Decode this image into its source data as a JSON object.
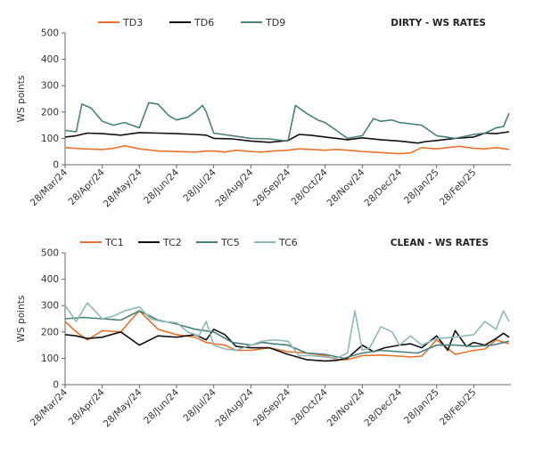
{
  "chart_data": [
    {
      "type": "line",
      "title": "DIRTY - WS RATES",
      "ylabel": "WS points",
      "ylim": [
        0,
        500
      ],
      "yticks": [
        0,
        100,
        200,
        300,
        400,
        500
      ],
      "x_tick_labels": [
        "28/Mar/24",
        "28/Apr/24",
        "28/May/24",
        "28/Jun/24",
        "28/Jul/24",
        "28/Aug/24",
        "28/Sep/24",
        "28/Oct/24",
        "28/Nov/24",
        "28/Dec/24",
        "28/Jan/25",
        "28/Feb/25"
      ],
      "xlim": [
        0,
        12
      ],
      "legend_position": "top",
      "series": [
        {
          "name": "TD3",
          "color": "#e8732c",
          "x": [
            0,
            0.5,
            1,
            1.3,
            1.6,
            2,
            2.5,
            3,
            3.5,
            3.8,
            4,
            4.3,
            4.6,
            5,
            5.3,
            5.6,
            6,
            6.3,
            6.6,
            7,
            7.3,
            7.6,
            8,
            8.3,
            8.6,
            9,
            9.3,
            9.6,
            10,
            10.3,
            10.6,
            11,
            11.3,
            11.6,
            11.95
          ],
          "y": [
            65,
            60,
            58,
            62,
            72,
            60,
            52,
            50,
            48,
            52,
            52,
            48,
            55,
            50,
            48,
            52,
            55,
            60,
            58,
            55,
            58,
            55,
            50,
            48,
            45,
            42,
            45,
            65,
            60,
            65,
            70,
            62,
            60,
            65,
            58
          ]
        },
        {
          "name": "TD6",
          "color": "#111111",
          "x": [
            0,
            0.3,
            0.6,
            1,
            1.5,
            2,
            2.5,
            3,
            3.5,
            3.8,
            4,
            4.5,
            5,
            5.5,
            6,
            6.3,
            6.6,
            7,
            7.3,
            7.6,
            8,
            8.5,
            9,
            9.5,
            9.7,
            10,
            10.5,
            11,
            11.3,
            11.6,
            11.95
          ],
          "y": [
            105,
            110,
            120,
            118,
            112,
            122,
            120,
            118,
            115,
            112,
            100,
            98,
            90,
            85,
            92,
            115,
            112,
            105,
            100,
            95,
            102,
            95,
            90,
            82,
            88,
            92,
            100,
            105,
            120,
            118,
            125
          ]
        },
        {
          "name": "TD9",
          "color": "#4a7f7f",
          "x": [
            0,
            0.3,
            0.45,
            0.7,
            1,
            1.3,
            1.6,
            2,
            2.25,
            2.5,
            2.8,
            3,
            3.3,
            3.5,
            3.7,
            3.8,
            4,
            4.5,
            5,
            5.5,
            6,
            6.2,
            6.5,
            6.8,
            7,
            7.3,
            7.6,
            8,
            8.3,
            8.5,
            8.8,
            9,
            9.3,
            9.6,
            10,
            10.5,
            11,
            11.3,
            11.6,
            11.8,
            11.95
          ],
          "y": [
            130,
            125,
            230,
            215,
            165,
            150,
            160,
            140,
            235,
            230,
            185,
            170,
            180,
            200,
            225,
            200,
            120,
            110,
            100,
            98,
            90,
            225,
            195,
            170,
            160,
            130,
            100,
            110,
            175,
            165,
            170,
            160,
            155,
            150,
            110,
            100,
            115,
            120,
            140,
            145,
            195
          ]
        }
      ]
    },
    {
      "type": "line",
      "title": "CLEAN - WS RATES",
      "ylabel": "WS points",
      "ylim": [
        0,
        500
      ],
      "yticks": [
        0,
        100,
        200,
        300,
        400,
        500
      ],
      "x_tick_labels": [
        "28/Mar/24",
        "28/Apr/24",
        "28/May/24",
        "28/Jun/24",
        "28/Jul/24",
        "28/Aug/24",
        "28/Sep/24",
        "28/Oct/24",
        "28/Nov/24",
        "28/Dec/24",
        "28/Jan/25",
        "28/Feb/25"
      ],
      "xlim": [
        0,
        12
      ],
      "legend_position": "top",
      "series": [
        {
          "name": "TC1",
          "color": "#e8732c",
          "x": [
            0,
            0.3,
            0.6,
            1,
            1.5,
            1.8,
            2,
            2.5,
            3,
            3.5,
            3.8,
            4,
            4.3,
            4.6,
            5,
            5.5,
            6,
            6.5,
            7,
            7.3,
            7.6,
            8,
            8.5,
            9,
            9.3,
            9.6,
            10,
            10.5,
            11,
            11.3,
            11.6,
            11.95
          ],
          "y": [
            240,
            200,
            170,
            205,
            200,
            250,
            280,
            210,
            190,
            180,
            160,
            155,
            150,
            130,
            130,
            140,
            125,
            120,
            110,
            95,
            95,
            110,
            112,
            108,
            105,
            108,
            170,
            115,
            130,
            135,
            170,
            155
          ]
        },
        {
          "name": "TC2",
          "color": "#111111",
          "x": [
            0,
            0.3,
            0.6,
            1,
            1.5,
            2,
            2.5,
            3,
            3.5,
            3.8,
            4,
            4.3,
            4.6,
            5,
            5.5,
            6,
            6.5,
            7,
            7.3,
            7.6,
            8,
            8.3,
            8.6,
            9,
            9.3,
            9.6,
            10,
            10.3,
            10.5,
            10.8,
            11,
            11.3,
            11.6,
            11.8,
            11.95
          ],
          "y": [
            190,
            185,
            175,
            180,
            200,
            150,
            185,
            180,
            190,
            170,
            210,
            190,
            145,
            140,
            140,
            115,
            95,
            90,
            92,
            100,
            150,
            125,
            140,
            150,
            155,
            140,
            185,
            130,
            205,
            145,
            160,
            150,
            175,
            195,
            180
          ]
        },
        {
          "name": "TC5",
          "color": "#4a7f7f",
          "x": [
            0,
            0.5,
            1,
            1.5,
            2,
            2.5,
            3,
            3.5,
            4,
            4.5,
            5,
            5.3,
            5.6,
            6,
            6.5,
            7,
            7.5,
            8,
            8.5,
            9,
            9.5,
            10,
            10.5,
            11,
            11.5,
            11.95
          ],
          "y": [
            250,
            255,
            250,
            245,
            280,
            245,
            230,
            210,
            200,
            160,
            150,
            160,
            155,
            150,
            120,
            115,
            100,
            120,
            130,
            125,
            120,
            150,
            150,
            145,
            150,
            165
          ]
        },
        {
          "name": "TC6",
          "color": "#8fb8b8",
          "x": [
            0,
            0.3,
            0.6,
            1,
            1.3,
            1.6,
            2,
            2.3,
            2.6,
            3,
            3.3,
            3.6,
            3.8,
            4,
            4.3,
            4.6,
            5,
            5.3,
            5.6,
            6,
            6.3,
            6.6,
            7,
            7.3,
            7.6,
            7.8,
            8,
            8.2,
            8.5,
            8.8,
            9,
            9.3,
            9.6,
            10,
            10.5,
            11,
            11.3,
            11.6,
            11.8,
            11.95
          ],
          "y": [
            300,
            240,
            310,
            250,
            260,
            280,
            295,
            250,
            240,
            235,
            200,
            185,
            240,
            150,
            135,
            130,
            150,
            165,
            170,
            165,
            110,
            110,
            105,
            100,
            120,
            280,
            130,
            140,
            220,
            200,
            150,
            185,
            150,
            175,
            180,
            190,
            240,
            210,
            280,
            240
          ]
        }
      ]
    }
  ]
}
